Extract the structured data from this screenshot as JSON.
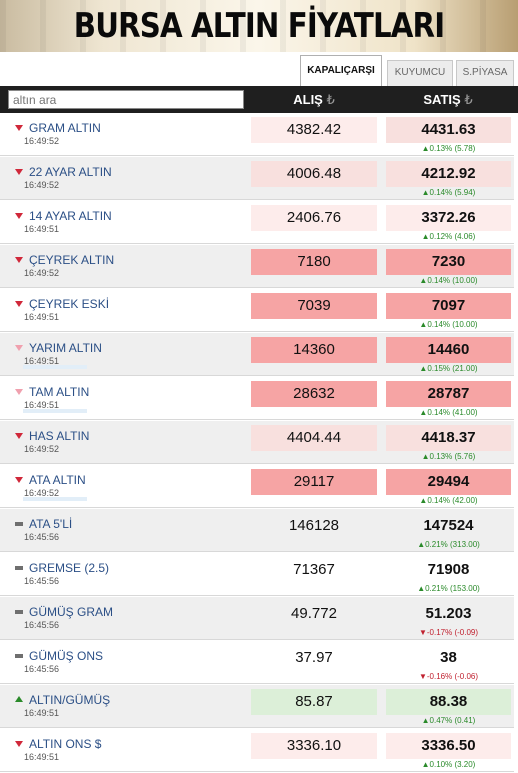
{
  "banner": {
    "title": "BURSA ALTIN FİYATLARI"
  },
  "tabs": [
    "KAPALIÇARŞI",
    "KUYUMCU",
    "S.PİYASA"
  ],
  "search": {
    "placeholder": "altın ara"
  },
  "columns": {
    "buy": "ALIŞ",
    "sell": "SATIŞ",
    "currency_symbol": "₺"
  },
  "rates": [
    {
      "name": "GRAM ALTIN",
      "time": "16:49:52",
      "buy": "4382.42",
      "sell": "4431.63",
      "change": "▲0.13% (5.78)",
      "direction": "down",
      "icon": "red-down-triangle-icon"
    },
    {
      "name": "22 AYAR ALTIN",
      "time": "16:49:52",
      "buy": "4006.48",
      "sell": "4212.92",
      "change": "▲0.14% (5.94)",
      "direction": "down",
      "icon": "red-down-triangle-icon"
    },
    {
      "name": "14 AYAR ALTIN",
      "time": "16:49:51",
      "buy": "2406.76",
      "sell": "3372.26",
      "change": "▲0.12% (4.06)",
      "direction": "down",
      "icon": "red-down-triangle-icon"
    },
    {
      "name": "ÇEYREK ALTIN",
      "time": "16:49:52",
      "buy": "7180",
      "sell": "7230",
      "change": "▲0.14% (10.00)",
      "direction": "down",
      "icon": "red-down-triangle-icon"
    },
    {
      "name": "ÇEYREK ESKİ",
      "time": "16:49:51",
      "buy": "7039",
      "sell": "7097",
      "change": "▲0.14% (10.00)",
      "direction": "down",
      "icon": "red-down-triangle-icon"
    },
    {
      "name": "YARIM ALTIN",
      "time": "16:49:51",
      "buy": "14360",
      "sell": "14460",
      "change": "▲0.15% (21.00)",
      "direction": "down",
      "icon": "pale-down-triangle-icon"
    },
    {
      "name": "TAM ALTIN",
      "time": "16:49:51",
      "buy": "28632",
      "sell": "28787",
      "change": "▲0.14% (41.00)",
      "direction": "down",
      "icon": "pale-down-triangle-icon"
    },
    {
      "name": "HAS ALTIN",
      "time": "16:49:52",
      "buy": "4404.44",
      "sell": "4418.37",
      "change": "▲0.13% (5.76)",
      "direction": "down",
      "icon": "red-down-triangle-icon"
    },
    {
      "name": "ATA ALTIN",
      "time": "16:49:52",
      "buy": "29117",
      "sell": "29494",
      "change": "▲0.14% (42.00)",
      "direction": "down",
      "icon": "red-down-triangle-icon"
    },
    {
      "name": "ATA 5'Lİ",
      "time": "16:45:56",
      "buy": "146128",
      "sell": "147524",
      "change": "▲0.21% (313.00)",
      "direction": "flat",
      "icon": "gray-bar-icon"
    },
    {
      "name": "GREMSE (2.5)",
      "time": "16:45:56",
      "buy": "71367",
      "sell": "71908",
      "change": "▲0.21% (153.00)",
      "direction": "flat",
      "icon": "gray-bar-icon"
    },
    {
      "name": "GÜMÜŞ GRAM",
      "time": "16:45:56",
      "buy": "49.772",
      "sell": "51.203",
      "change": "▼-0.17% (-0.09)",
      "direction": "flat",
      "icon": "gray-bar-icon"
    },
    {
      "name": "GÜMÜŞ ONS",
      "time": "16:45:56",
      "buy": "37.97",
      "sell": "38",
      "change": "▼-0.16% (-0.06)",
      "direction": "flat",
      "icon": "gray-bar-icon"
    },
    {
      "name": "ALTIN/GÜMÜŞ",
      "time": "16:49:51",
      "buy": "85.87",
      "sell": "88.38",
      "change": "▲0.47% (0.41)",
      "direction": "up",
      "icon": "green-up-triangle-icon"
    },
    {
      "name": "ALTIN ONS $",
      "time": "16:49:51",
      "buy": "3336.10",
      "sell": "3336.50",
      "change": "▲0.10% (3.20)",
      "direction": "down",
      "icon": "red-down-triangle-icon"
    }
  ],
  "colors": {
    "header_bg": "#1f1f1f",
    "name_blue": "#2b4f86",
    "up_green": "#2a8a2a",
    "down_red": "#c0212f",
    "highlight_pink": "#f6a4a4",
    "highlight_green": "#dcefd8"
  }
}
